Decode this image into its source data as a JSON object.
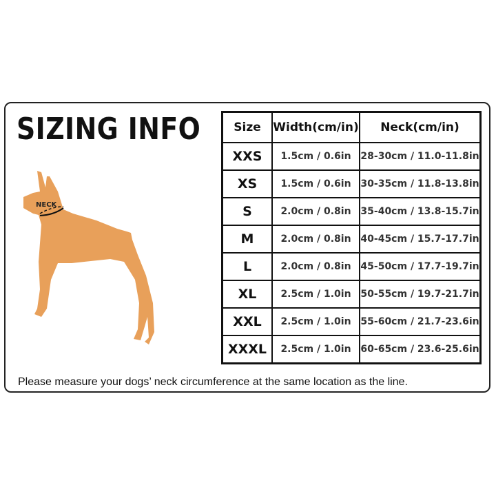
{
  "title": "SIZING INFO",
  "dog_label": "NECK",
  "dog_color": "#E8A05A",
  "table": {
    "headers": [
      "Size",
      "Width(cm/in)",
      "Neck(cm/in)"
    ],
    "rows": [
      {
        "size": "XXS",
        "width": "1.5cm / 0.6in",
        "neck": "28-30cm / 11.0-11.8in"
      },
      {
        "size": "XS",
        "width": "1.5cm / 0.6in",
        "neck": "30-35cm / 11.8-13.8in"
      },
      {
        "size": "S",
        "width": "2.0cm / 0.8in",
        "neck": "35-40cm / 13.8-15.7in"
      },
      {
        "size": "M",
        "width": "2.0cm / 0.8in",
        "neck": "40-45cm / 15.7-17.7in"
      },
      {
        "size": "L",
        "width": "2.0cm / 0.8in",
        "neck": "45-50cm / 17.7-19.7in"
      },
      {
        "size": "XL",
        "width": "2.5cm / 1.0in",
        "neck": "50-55cm / 19.7-21.7in"
      },
      {
        "size": "XXL",
        "width": "2.5cm / 1.0in",
        "neck": "55-60cm / 21.7-23.6in"
      },
      {
        "size": "XXXL",
        "width": "2.5cm / 1.0in",
        "neck": "60-65cm / 23.6-25.6in"
      }
    ]
  },
  "note": "Please measure your dogs’   neck circumference at the same location as the line."
}
